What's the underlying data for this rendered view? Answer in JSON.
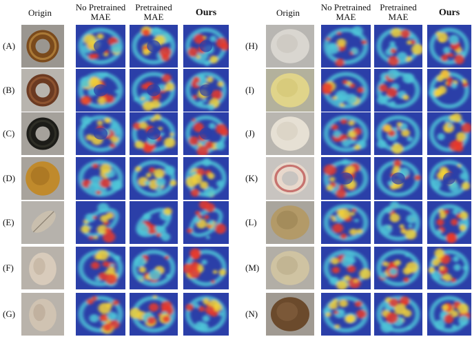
{
  "figure": {
    "left_panel": {
      "headers": [
        "Origin",
        "No Pretrained MAE",
        "Pretrained MAE",
        "Ours"
      ],
      "header_lines": [
        [
          "Origin"
        ],
        [
          "No Pretrained",
          "MAE"
        ],
        [
          "Pretrained",
          "MAE"
        ],
        [
          "Ours"
        ]
      ],
      "rows": [
        "(A)",
        "(B)",
        "(C)",
        "(D)",
        "(E)",
        "(F)",
        "(G)"
      ]
    },
    "right_panel": {
      "headers": [
        "Origin",
        "No Pretrained MAE",
        "Pretrained MAE",
        "Ours"
      ],
      "header_lines": [
        [
          "Origin"
        ],
        [
          "No Pretrained",
          "MAE"
        ],
        [
          "Pretrained",
          "MAE"
        ],
        [
          "Ours"
        ]
      ],
      "rows": [
        "(H)",
        "(I)",
        "(J)",
        "(K)",
        "(L)",
        "(M)",
        "(N)"
      ]
    },
    "colors": {
      "heat_background": "#2b3fa8",
      "heat_hot": "#e8382a",
      "heat_warm": "#f2d13a",
      "heat_cool": "#4fc6d8"
    }
  }
}
